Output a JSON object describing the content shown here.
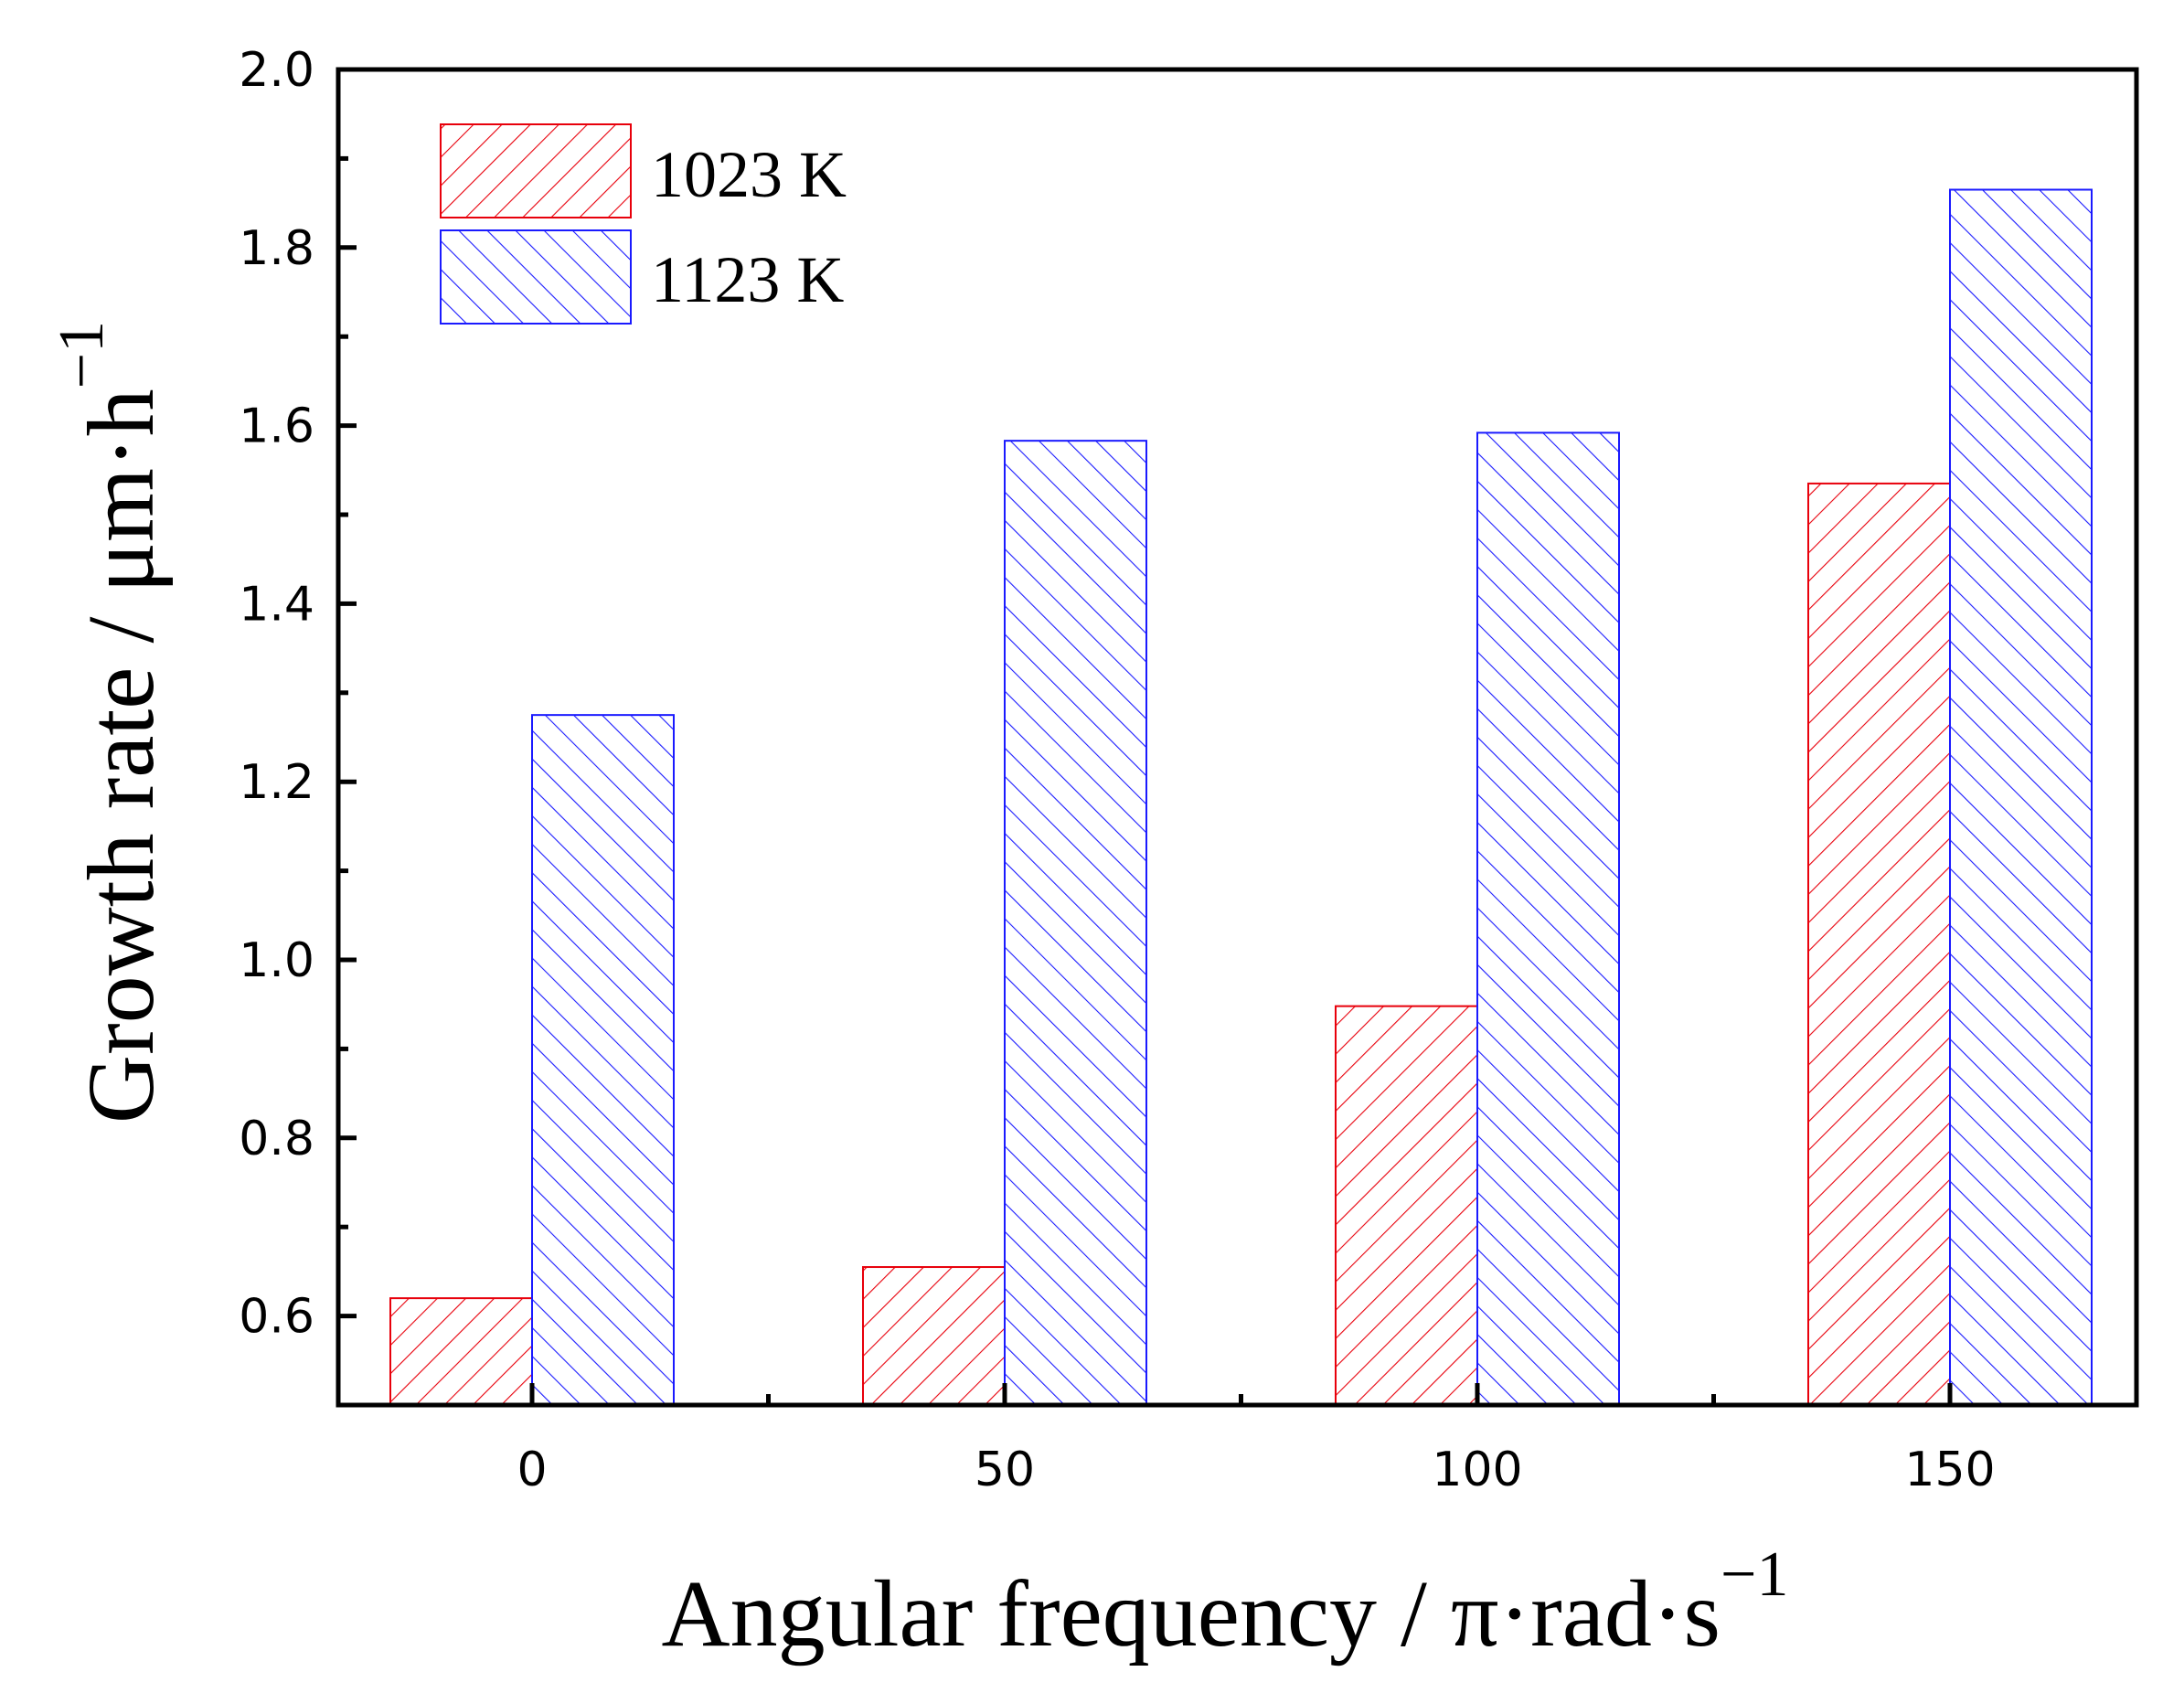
{
  "chart_data": {
    "type": "bar",
    "title": "",
    "xlabel": {
      "main": "Angular frequency / π·rad·s",
      "sup": "−1"
    },
    "ylabel": {
      "main": "Growth rate / μm·h",
      "sup": "−1"
    },
    "categories": [
      "0",
      "50",
      "100",
      "150"
    ],
    "ylim": [
      0.5,
      2.0
    ],
    "yticks": [
      "0.6",
      "0.8",
      "1.0",
      "1.2",
      "1.4",
      "1.6",
      "1.8",
      "2.0"
    ],
    "legend_position": "top-left",
    "grid": false,
    "series": [
      {
        "name": "1023 K",
        "values": [
          0.62,
          0.655,
          0.948,
          1.535
        ],
        "color": "#e8000b",
        "hatch": "backslash"
      },
      {
        "name": "1123 K",
        "values": [
          1.275,
          1.583,
          1.592,
          1.865
        ],
        "color": "#1a1aff",
        "hatch": "slash"
      }
    ]
  }
}
